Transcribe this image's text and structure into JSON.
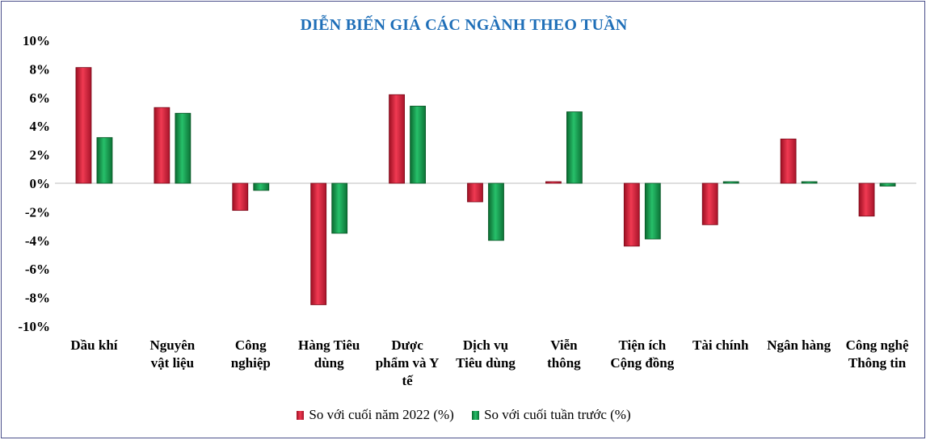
{
  "colors": {
    "series1": "#e0213b",
    "series2": "#139a4a",
    "title": "#1f6fb8",
    "axis": "#bdbdbd"
  },
  "chart_data": {
    "type": "bar",
    "title": "DIỄN BIẾN GIÁ CÁC NGÀNH THEO TUẦN",
    "ylim": [
      -10,
      10
    ],
    "yticks": [
      "10%",
      "8%",
      "6%",
      "4%",
      "2%",
      "0%",
      "-2%",
      "-4%",
      "-6%",
      "-8%",
      "-10%"
    ],
    "categories": [
      [
        "Dầu khí"
      ],
      [
        "Nguyên",
        "vật liệu"
      ],
      [
        "Công",
        "nghiệp"
      ],
      [
        "Hàng Tiêu",
        "dùng"
      ],
      [
        "Dược",
        "phẩm và Y",
        "tế"
      ],
      [
        "Dịch vụ",
        "Tiêu dùng"
      ],
      [
        "Viễn",
        "thông"
      ],
      [
        "Tiện ích",
        "Cộng đồng"
      ],
      [
        "Tài chính"
      ],
      [
        "Ngân hàng"
      ],
      [
        "Công nghệ",
        "Thông tin"
      ]
    ],
    "series": [
      {
        "name": "So với cuối năm 2022 (%)",
        "values": [
          8.1,
          5.3,
          -1.9,
          -8.5,
          6.2,
          -1.3,
          0.05,
          -4.4,
          -2.9,
          3.1,
          -2.3
        ]
      },
      {
        "name": "So với cuối tuần trước (%)",
        "values": [
          3.2,
          4.9,
          -0.5,
          -3.5,
          5.4,
          -4.0,
          5.0,
          -3.9,
          0.05,
          0.05,
          -0.2
        ]
      }
    ],
    "legend_position": "bottom"
  }
}
